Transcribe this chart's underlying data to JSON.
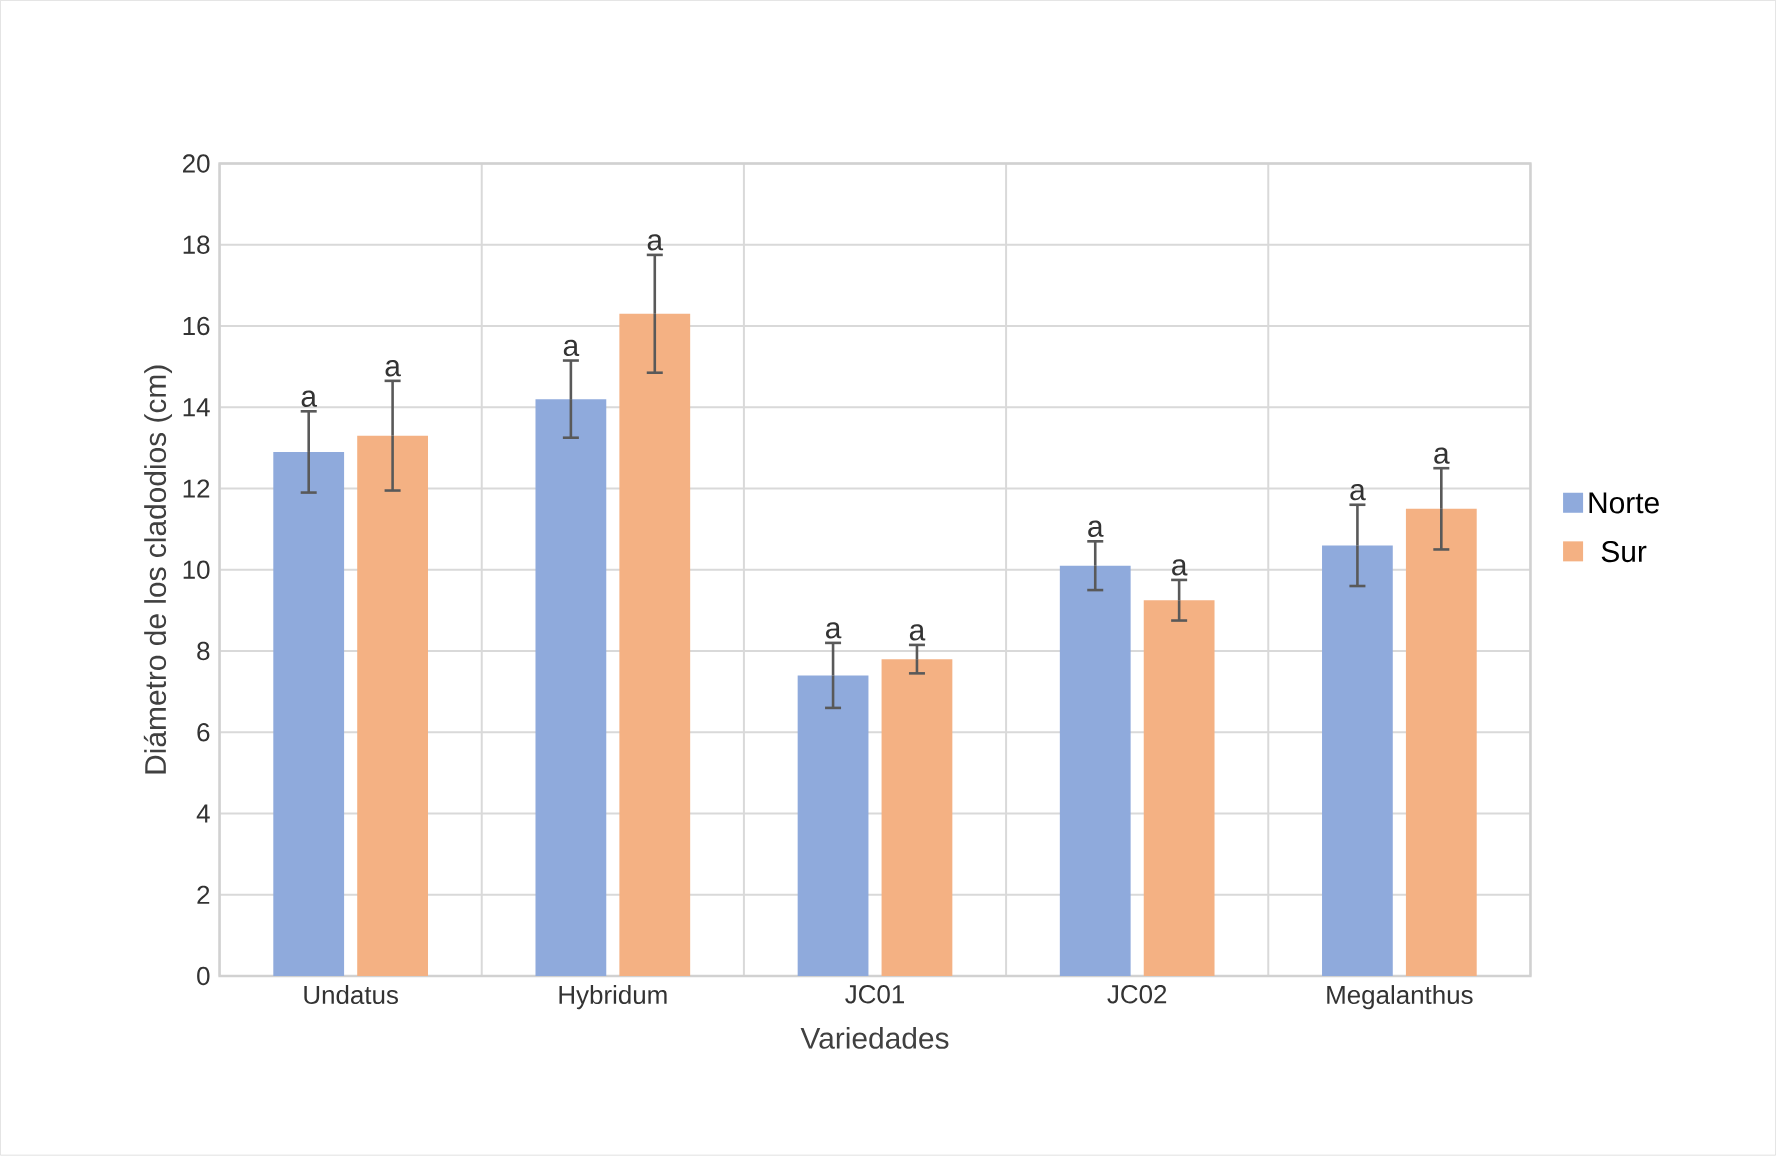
{
  "chart_data": {
    "type": "bar",
    "xlabel": "Variedades",
    "ylabel": "Diámetro de los cladodios (cm)",
    "categories": [
      "Undatus",
      "Hybridum",
      "JC01",
      "JC02",
      "Megalanthus"
    ],
    "series": [
      {
        "name": "Norte",
        "color": "#8faadc",
        "values": [
          12.9,
          14.2,
          7.4,
          10.1,
          10.6
        ],
        "errors": [
          1.0,
          0.95,
          0.8,
          0.6,
          1.0
        ]
      },
      {
        "name": "Sur",
        "color": "#f4b183",
        "values": [
          13.3,
          16.3,
          7.8,
          9.25,
          11.5
        ],
        "errors": [
          1.35,
          1.45,
          0.35,
          0.5,
          1.0
        ]
      }
    ],
    "ylim": [
      0,
      20
    ],
    "yticks": [
      0,
      2,
      4,
      6,
      8,
      10,
      12,
      14,
      16,
      18,
      20
    ],
    "grid": true,
    "legend": "right",
    "annotations": [
      "a",
      "a",
      "a",
      "a",
      "a",
      "a",
      "a",
      "a",
      "a",
      "a"
    ]
  }
}
